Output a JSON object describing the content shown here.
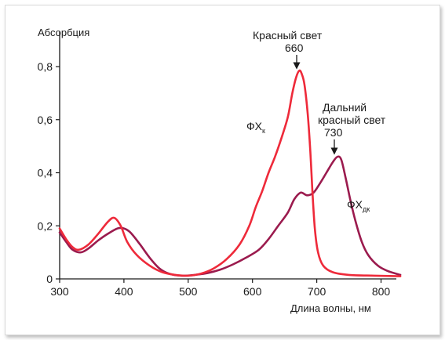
{
  "chart_data": {
    "type": "line",
    "title": "",
    "ylabel": "Абсорбция",
    "xlabel": "Длина волны, нм",
    "xlim": [
      300,
      830
    ],
    "ylim": [
      0,
      0.8
    ],
    "xticks": [
      300,
      400,
      500,
      600,
      700,
      800
    ],
    "xtick_labels": [
      "300",
      "400",
      "500",
      "600",
      "700",
      "800"
    ],
    "yticks": [
      0,
      0.2,
      0.4,
      0.6,
      0.8
    ],
    "ytick_labels": [
      "0",
      "0,2",
      "0,4",
      "0,6",
      "0,8"
    ],
    "grid": false,
    "legend": "none",
    "series": [
      {
        "name": "ФХк",
        "name_main": "ФХ",
        "name_sub": "к",
        "color": "#ee2a3a",
        "points": [
          [
            300,
            0.19
          ],
          [
            310,
            0.15
          ],
          [
            320,
            0.12
          ],
          [
            330,
            0.11
          ],
          [
            345,
            0.13
          ],
          [
            360,
            0.17
          ],
          [
            375,
            0.215
          ],
          [
            385,
            0.23
          ],
          [
            395,
            0.2
          ],
          [
            405,
            0.14
          ],
          [
            420,
            0.09
          ],
          [
            440,
            0.05
          ],
          [
            460,
            0.025
          ],
          [
            480,
            0.015
          ],
          [
            500,
            0.012
          ],
          [
            520,
            0.02
          ],
          [
            540,
            0.04
          ],
          [
            560,
            0.075
          ],
          [
            580,
            0.13
          ],
          [
            595,
            0.2
          ],
          [
            605,
            0.27
          ],
          [
            615,
            0.33
          ],
          [
            625,
            0.4
          ],
          [
            635,
            0.46
          ],
          [
            645,
            0.53
          ],
          [
            655,
            0.61
          ],
          [
            662,
            0.7
          ],
          [
            668,
            0.76
          ],
          [
            673,
            0.785
          ],
          [
            677,
            0.77
          ],
          [
            681,
            0.73
          ],
          [
            686,
            0.62
          ],
          [
            690,
            0.48
          ],
          [
            693,
            0.34
          ],
          [
            697,
            0.19
          ],
          [
            702,
            0.1
          ],
          [
            710,
            0.05
          ],
          [
            725,
            0.025
          ],
          [
            750,
            0.015
          ],
          [
            790,
            0.012
          ],
          [
            830,
            0.01
          ]
        ]
      },
      {
        "name": "ФХдк",
        "name_main": "ФХ",
        "name_sub": "дк",
        "color": "#9b1b4e",
        "points": [
          [
            300,
            0.175
          ],
          [
            310,
            0.14
          ],
          [
            320,
            0.11
          ],
          [
            333,
            0.1
          ],
          [
            345,
            0.115
          ],
          [
            360,
            0.145
          ],
          [
            375,
            0.17
          ],
          [
            390,
            0.19
          ],
          [
            400,
            0.19
          ],
          [
            410,
            0.175
          ],
          [
            425,
            0.13
          ],
          [
            440,
            0.08
          ],
          [
            455,
            0.04
          ],
          [
            470,
            0.02
          ],
          [
            490,
            0.012
          ],
          [
            510,
            0.015
          ],
          [
            530,
            0.022
          ],
          [
            550,
            0.035
          ],
          [
            570,
            0.055
          ],
          [
            590,
            0.08
          ],
          [
            610,
            0.11
          ],
          [
            625,
            0.15
          ],
          [
            640,
            0.2
          ],
          [
            655,
            0.25
          ],
          [
            665,
            0.3
          ],
          [
            675,
            0.325
          ],
          [
            685,
            0.315
          ],
          [
            695,
            0.325
          ],
          [
            705,
            0.36
          ],
          [
            715,
            0.4
          ],
          [
            725,
            0.44
          ],
          [
            732,
            0.46
          ],
          [
            738,
            0.45
          ],
          [
            745,
            0.38
          ],
          [
            752,
            0.3
          ],
          [
            760,
            0.22
          ],
          [
            770,
            0.14
          ],
          [
            780,
            0.09
          ],
          [
            795,
            0.05
          ],
          [
            810,
            0.03
          ],
          [
            830,
            0.015
          ]
        ]
      }
    ],
    "annotations": {
      "red_line1": "Красный свет",
      "red_line2": "660",
      "farred_line1": "Дальний",
      "farred_line2": "красный свет",
      "farred_line3": "730"
    }
  }
}
